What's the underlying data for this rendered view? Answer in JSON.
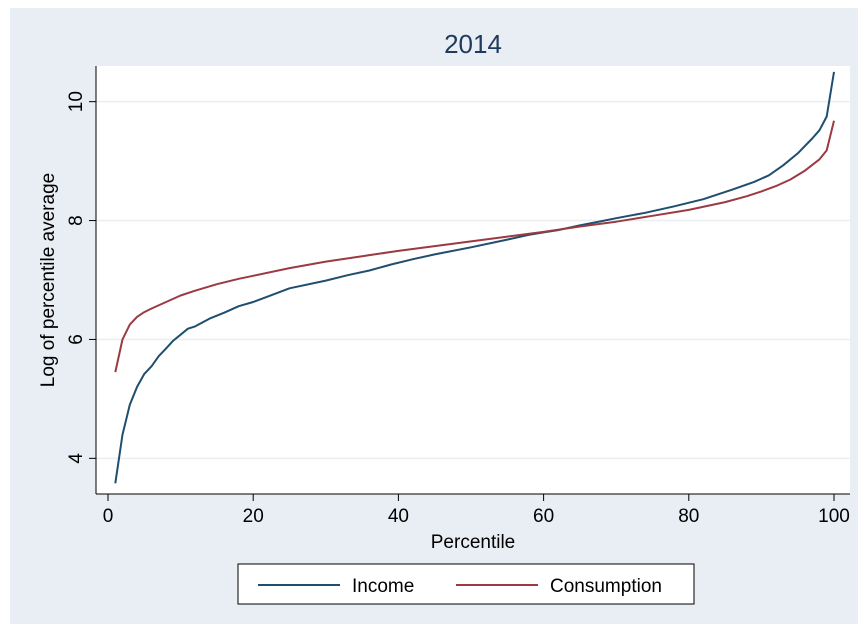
{
  "chart_data": {
    "type": "line",
    "title": "2014",
    "xlabel": "Percentile",
    "ylabel": "Log of percentile average",
    "xlim": [
      0,
      100
    ],
    "ylim": [
      3.4,
      10.6
    ],
    "xticks": [
      0,
      20,
      40,
      60,
      80,
      100
    ],
    "yticks": [
      4,
      6,
      8,
      10
    ],
    "grid": "horizontal",
    "legend_position": "bottom",
    "series": [
      {
        "name": "Income",
        "color": "#1f4e6e",
        "x": [
          1,
          2,
          3,
          4,
          5,
          6,
          7,
          8,
          9,
          10,
          11,
          12,
          14,
          16,
          18,
          20,
          22,
          25,
          30,
          33,
          36,
          39,
          42,
          45,
          50,
          55,
          58,
          60,
          62,
          65,
          68,
          70,
          74,
          78,
          82,
          86,
          89,
          91,
          93,
          95,
          97,
          98,
          99,
          100
        ],
        "y": [
          3.58,
          4.4,
          4.9,
          5.2,
          5.42,
          5.55,
          5.72,
          5.85,
          5.98,
          6.08,
          6.18,
          6.22,
          6.35,
          6.45,
          6.56,
          6.63,
          6.72,
          6.86,
          6.99,
          7.08,
          7.16,
          7.26,
          7.35,
          7.43,
          7.55,
          7.68,
          7.76,
          7.8,
          7.84,
          7.92,
          7.99,
          8.04,
          8.13,
          8.24,
          8.36,
          8.52,
          8.65,
          8.76,
          8.93,
          9.13,
          9.38,
          9.52,
          9.75,
          10.5
        ]
      },
      {
        "name": "Consumption",
        "color": "#9b3a42",
        "x": [
          1,
          2,
          3,
          4,
          5,
          6,
          8,
          10,
          12,
          15,
          18,
          20,
          25,
          30,
          35,
          40,
          45,
          50,
          55,
          60,
          65,
          70,
          75,
          80,
          85,
          88,
          90,
          92,
          94,
          96,
          98,
          99,
          100
        ],
        "y": [
          5.45,
          6.0,
          6.25,
          6.38,
          6.46,
          6.52,
          6.63,
          6.74,
          6.82,
          6.93,
          7.02,
          7.07,
          7.2,
          7.31,
          7.4,
          7.49,
          7.57,
          7.65,
          7.73,
          7.81,
          7.9,
          7.98,
          8.08,
          8.18,
          8.31,
          8.41,
          8.49,
          8.58,
          8.69,
          8.84,
          9.03,
          9.18,
          9.68
        ]
      }
    ]
  }
}
